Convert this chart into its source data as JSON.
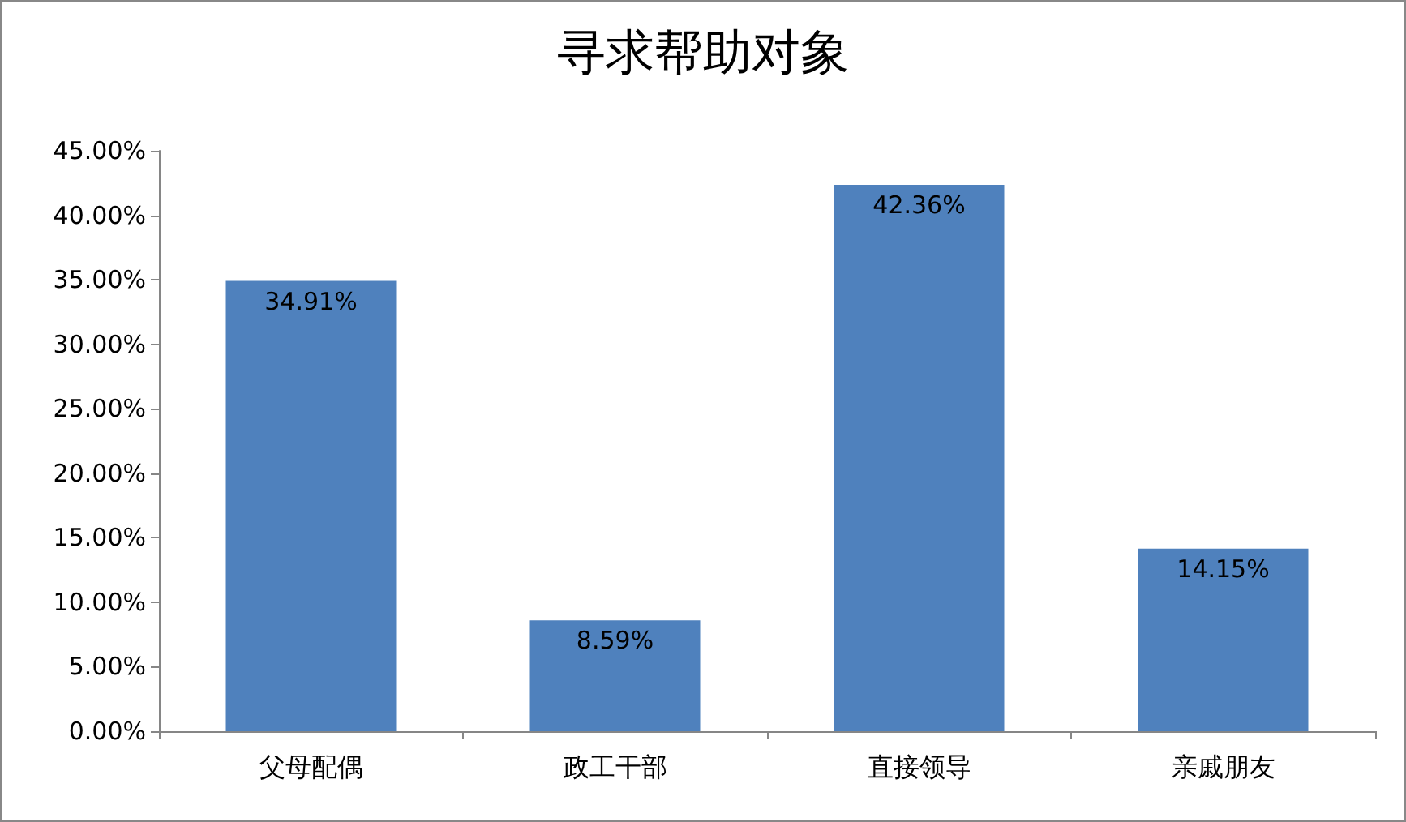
{
  "chart_data": {
    "type": "bar",
    "title": "寻求帮助对象",
    "categories": [
      "父母配偶",
      "政工干部",
      "直接领导",
      "亲戚朋友"
    ],
    "values": [
      34.91,
      8.59,
      42.36,
      14.15
    ],
    "value_labels": [
      "34.91%",
      "8.59%",
      "42.36%",
      "14.15%"
    ],
    "color": "#4f81bd",
    "ylim": [
      0,
      45
    ],
    "yticks": [
      {
        "value": 0,
        "label": "0.00%"
      },
      {
        "value": 5,
        "label": "5.00%"
      },
      {
        "value": 10,
        "label": "10.00%"
      },
      {
        "value": 15,
        "label": "15.00%"
      },
      {
        "value": 20,
        "label": "20.00%"
      },
      {
        "value": 25,
        "label": "25.00%"
      },
      {
        "value": 30,
        "label": "30.00%"
      },
      {
        "value": 35,
        "label": "35.00%"
      },
      {
        "value": 40,
        "label": "40.00%"
      },
      {
        "value": 45,
        "label": "45.00%"
      }
    ],
    "grid": false
  }
}
